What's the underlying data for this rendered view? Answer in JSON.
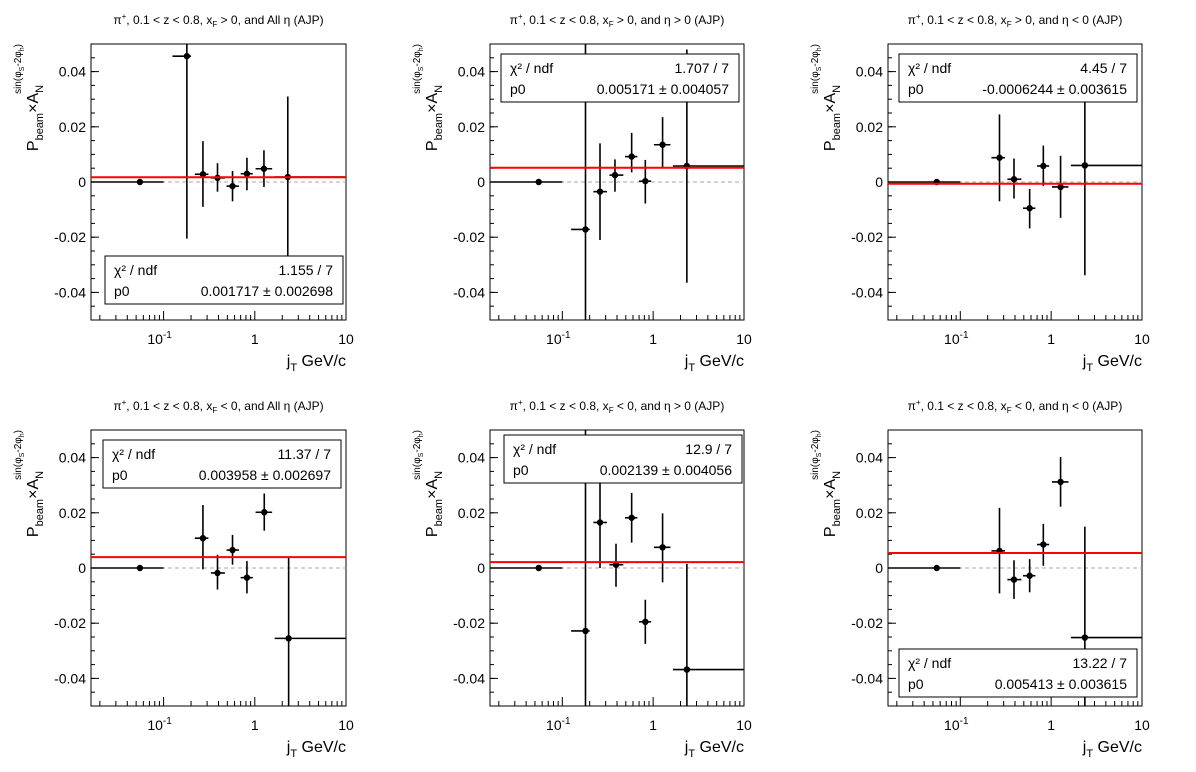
{
  "x_axis_label": {
    "main": "j",
    "sub": "T",
    "rest": " GeV/c"
  },
  "y_axis_label": {
    "p": "P",
    "beam": "beam",
    "times": "×A",
    "n": "N",
    "sup": "sin(φ",
    "sup_s": "S",
    "sup_mid": "-2φ",
    "sup_h": "h",
    "sup_end": ")"
  },
  "x_tick_labels": [
    "10",
    "1",
    "10"
  ],
  "x_tick_exponent": "-1",
  "colors": {
    "fit_line": "#ff0000",
    "zero_line": "#aaaaaa",
    "points": "#000000"
  },
  "chart_data": [
    {
      "type": "scatter",
      "title": "π⁺, 0.1 < z < 0.8, x_F > 0, and All η (AJP)",
      "title_parts": {
        "pre": "π",
        "pre_sup": "+",
        "mid": ", 0.1 < z < 0.8, x",
        "sub": "F",
        "post": " > 0, and All η (AJP)"
      },
      "xlabel": "j_T GeV/c",
      "ylabel": "P_beam × A_N^{sin(φ_S-2φ_h)}",
      "xscale": "log",
      "xlim": [
        0.016,
        10
      ],
      "ylim": [
        -0.05,
        0.05
      ],
      "y_ticks": [
        "0.04",
        "0.02",
        "0",
        "-0.02",
        "-0.04"
      ],
      "points": [
        {
          "x": 0.055,
          "y": 0.0,
          "xlo": 0.016,
          "xhi": 0.1,
          "ylo": 0.0,
          "yhi": 0.0
        },
        {
          "x": 0.18,
          "y": 0.0456,
          "xlo": 0.125,
          "xhi": 0.2,
          "ylo": -0.0205,
          "yhi": 0.05
        },
        {
          "x": 0.27,
          "y": 0.0028,
          "xlo": 0.22,
          "xhi": 0.31,
          "ylo": -0.009,
          "yhi": 0.0148
        },
        {
          "x": 0.39,
          "y": 0.0015,
          "xlo": 0.33,
          "xhi": 0.47,
          "ylo": -0.0035,
          "yhi": 0.0068
        },
        {
          "x": 0.57,
          "y": -0.0015,
          "xlo": 0.49,
          "xhi": 0.67,
          "ylo": -0.007,
          "yhi": 0.004
        },
        {
          "x": 0.82,
          "y": 0.003,
          "xlo": 0.7,
          "xhi": 0.95,
          "ylo": -0.003,
          "yhi": 0.0088
        },
        {
          "x": 1.26,
          "y": 0.0048,
          "xlo": 1.02,
          "xhi": 1.55,
          "ylo": -0.0018,
          "yhi": 0.0115
        },
        {
          "x": 2.3,
          "y": 0.0018,
          "xlo": 1.65,
          "xhi": 10,
          "ylo": -0.0272,
          "yhi": 0.031
        }
      ],
      "fit": {
        "p0": 0.001717,
        "label_chi2": "χ² / ndf",
        "chi2": "1.155 / 7",
        "label_p0": "p0",
        "p0_text": "0.001717 ± 0.002698"
      },
      "stats_box_position": "bottom-left"
    },
    {
      "type": "scatter",
      "title": "π⁺, 0.1 < z < 0.8, x_F > 0, and η > 0 (AJP)",
      "title_parts": {
        "pre": "π",
        "pre_sup": "+",
        "mid": ", 0.1 < z < 0.8, x",
        "sub": "F",
        "post": " > 0, and η > 0 (AJP)"
      },
      "xlabel": "j_T GeV/c",
      "ylabel": "P_beam × A_N^{sin(φ_S-2φ_h)}",
      "xscale": "log",
      "xlim": [
        0.016,
        10
      ],
      "ylim": [
        -0.05,
        0.05
      ],
      "y_ticks": [
        "0.04",
        "0.02",
        "0",
        "-0.02",
        "-0.04"
      ],
      "points": [
        {
          "x": 0.055,
          "y": 0.0,
          "xlo": 0.016,
          "xhi": 0.1,
          "ylo": 0.0,
          "yhi": 0.0
        },
        {
          "x": 0.18,
          "y": -0.0172,
          "xlo": 0.125,
          "xhi": 0.2,
          "ylo": -0.05,
          "yhi": 0.05
        },
        {
          "x": 0.26,
          "y": -0.0035,
          "xlo": 0.22,
          "xhi": 0.31,
          "ylo": -0.021,
          "yhi": 0.014
        },
        {
          "x": 0.38,
          "y": 0.0025,
          "xlo": 0.33,
          "xhi": 0.47,
          "ylo": -0.0035,
          "yhi": 0.0082
        },
        {
          "x": 0.58,
          "y": 0.0092,
          "xlo": 0.49,
          "xhi": 0.67,
          "ylo": 0.0035,
          "yhi": 0.0178
        },
        {
          "x": 0.82,
          "y": 0.0003,
          "xlo": 0.7,
          "xhi": 0.95,
          "ylo": -0.0078,
          "yhi": 0.008
        },
        {
          "x": 1.27,
          "y": 0.0135,
          "xlo": 1.02,
          "xhi": 1.55,
          "ylo": 0.0052,
          "yhi": 0.0235
        },
        {
          "x": 2.35,
          "y": 0.0058,
          "xlo": 1.65,
          "xhi": 10,
          "ylo": -0.0365,
          "yhi": 0.048
        }
      ],
      "fit": {
        "p0": 0.005171,
        "label_chi2": "χ² / ndf",
        "chi2": "1.707 / 7",
        "label_p0": "p0",
        "p0_text": "0.005171 ± 0.004057"
      },
      "stats_box_position": "top-right"
    },
    {
      "type": "scatter",
      "title": "π⁺, 0.1 < z < 0.8, x_F > 0, and η < 0 (AJP)",
      "title_parts": {
        "pre": "π",
        "pre_sup": "+",
        "mid": ", 0.1 < z < 0.8, x",
        "sub": "F",
        "post": " > 0, and η < 0 (AJP)"
      },
      "xlabel": "j_T GeV/c",
      "ylabel": "P_beam × A_N^{sin(φ_S-2φ_h)}",
      "xscale": "log",
      "xlim": [
        0.016,
        10
      ],
      "ylim": [
        -0.05,
        0.05
      ],
      "y_ticks": [
        "0.04",
        "0.02",
        "0",
        "-0.02",
        "-0.04"
      ],
      "points": [
        {
          "x": 0.055,
          "y": 0.0,
          "xlo": 0.016,
          "xhi": 0.1,
          "ylo": 0.0,
          "yhi": 0.0
        },
        {
          "x": 0.27,
          "y": 0.0088,
          "xlo": 0.22,
          "xhi": 0.31,
          "ylo": -0.007,
          "yhi": 0.0245
        },
        {
          "x": 0.39,
          "y": 0.001,
          "xlo": 0.33,
          "xhi": 0.47,
          "ylo": -0.006,
          "yhi": 0.0085
        },
        {
          "x": 0.58,
          "y": -0.0095,
          "xlo": 0.49,
          "xhi": 0.67,
          "ylo": -0.0168,
          "yhi": -0.0025
        },
        {
          "x": 0.82,
          "y": 0.0058,
          "xlo": 0.7,
          "xhi": 0.95,
          "ylo": -0.0015,
          "yhi": 0.0132
        },
        {
          "x": 1.27,
          "y": -0.0018,
          "xlo": 1.02,
          "xhi": 1.55,
          "ylo": -0.013,
          "yhi": 0.0095
        },
        {
          "x": 2.35,
          "y": 0.006,
          "xlo": 1.65,
          "xhi": 10,
          "ylo": -0.0338,
          "yhi": 0.0462
        }
      ],
      "fit": {
        "p0": -0.0006244,
        "label_chi2": "χ² / ndf",
        "chi2": "4.45 / 7",
        "label_p0": "p0",
        "p0_text": "-0.0006244 ± 0.003615"
      },
      "stats_box_position": "top-right"
    },
    {
      "type": "scatter",
      "title": "π⁺, 0.1 < z < 0.8, x_F < 0, and All η (AJP)",
      "title_parts": {
        "pre": "π",
        "pre_sup": "+",
        "mid": ", 0.1 < z < 0.8, x",
        "sub": "F",
        "post": " < 0, and All η (AJP)"
      },
      "xlabel": "j_T GeV/c",
      "ylabel": "P_beam × A_N^{sin(φ_S-2φ_h)}",
      "xscale": "log",
      "xlim": [
        0.016,
        10
      ],
      "ylim": [
        -0.05,
        0.05
      ],
      "y_ticks": [
        "0.04",
        "0.02",
        "0",
        "-0.02",
        "-0.04"
      ],
      "points": [
        {
          "x": 0.055,
          "y": 0.0,
          "xlo": 0.016,
          "xhi": 0.1,
          "ylo": 0.0,
          "yhi": 0.0
        },
        {
          "x": 0.27,
          "y": 0.0108,
          "xlo": 0.22,
          "xhi": 0.31,
          "ylo": -0.0005,
          "yhi": 0.0228
        },
        {
          "x": 0.39,
          "y": -0.0018,
          "xlo": 0.33,
          "xhi": 0.47,
          "ylo": -0.0078,
          "yhi": 0.0048
        },
        {
          "x": 0.57,
          "y": 0.0065,
          "xlo": 0.49,
          "xhi": 0.67,
          "ylo": 0.0012,
          "yhi": 0.012
        },
        {
          "x": 0.82,
          "y": -0.0035,
          "xlo": 0.7,
          "xhi": 0.95,
          "ylo": -0.0092,
          "yhi": 0.0025
        },
        {
          "x": 1.27,
          "y": 0.0202,
          "xlo": 1.02,
          "xhi": 1.55,
          "ylo": 0.0135,
          "yhi": 0.027
        },
        {
          "x": 2.35,
          "y": -0.0255,
          "xlo": 1.65,
          "xhi": 10,
          "ylo": -0.05,
          "yhi": 0.0038
        }
      ],
      "fit": {
        "p0": 0.003958,
        "label_chi2": "χ² / ndf",
        "chi2": "11.37 / 7",
        "label_p0": "p0",
        "p0_text": "0.003958 ± 0.002697"
      },
      "stats_box_position": "top-right"
    },
    {
      "type": "scatter",
      "title": "π⁺, 0.1 < z < 0.8, x_F < 0, and η > 0 (AJP)",
      "title_parts": {
        "pre": "π",
        "pre_sup": "+",
        "mid": ", 0.1 < z < 0.8, x",
        "sub": "F",
        "post": " < 0, and η > 0 (AJP)"
      },
      "xlabel": "j_T GeV/c",
      "ylabel": "P_beam × A_N^{sin(φ_S-2φ_h)}",
      "xscale": "log",
      "xlim": [
        0.016,
        10
      ],
      "ylim": [
        -0.05,
        0.05
      ],
      "y_ticks": [
        "0.04",
        "0.02",
        "0",
        "-0.02",
        "-0.04"
      ],
      "points": [
        {
          "x": 0.055,
          "y": 0.0,
          "xlo": 0.016,
          "xhi": 0.1,
          "ylo": 0.0,
          "yhi": 0.0
        },
        {
          "x": 0.18,
          "y": -0.0228,
          "xlo": 0.125,
          "xhi": 0.2,
          "ylo": -0.05,
          "yhi": 0.05
        },
        {
          "x": 0.26,
          "y": 0.0165,
          "xlo": 0.22,
          "xhi": 0.31,
          "ylo": 0.0,
          "yhi": 0.0335
        },
        {
          "x": 0.39,
          "y": 0.0012,
          "xlo": 0.33,
          "xhi": 0.47,
          "ylo": -0.0068,
          "yhi": 0.0088
        },
        {
          "x": 0.58,
          "y": 0.0182,
          "xlo": 0.49,
          "xhi": 0.67,
          "ylo": 0.0092,
          "yhi": 0.0272
        },
        {
          "x": 0.82,
          "y": -0.0195,
          "xlo": 0.7,
          "xhi": 0.95,
          "ylo": -0.0275,
          "yhi": -0.0115
        },
        {
          "x": 1.27,
          "y": 0.0075,
          "xlo": 1.02,
          "xhi": 1.55,
          "ylo": -0.0052,
          "yhi": 0.0198
        },
        {
          "x": 2.35,
          "y": -0.0368,
          "xlo": 1.65,
          "xhi": 10,
          "ylo": -0.05,
          "yhi": 0.0015
        }
      ],
      "fit": {
        "p0": 0.002139,
        "label_chi2": "χ² / ndf",
        "chi2": "12.9 / 7",
        "label_p0": "p0",
        "p0_text": "0.002139 ± 0.004056"
      },
      "stats_box_position": "top-left"
    },
    {
      "type": "scatter",
      "title": "π⁺, 0.1 < z < 0.8, x_F < 0, and η < 0 (AJP)",
      "title_parts": {
        "pre": "π",
        "pre_sup": "+",
        "mid": ", 0.1 < z < 0.8, x",
        "sub": "F",
        "post": " < 0, and η < 0 (AJP)"
      },
      "xlabel": "j_T GeV/c",
      "ylabel": "P_beam × A_N^{sin(φ_S-2φ_h)}",
      "xscale": "log",
      "xlim": [
        0.016,
        10
      ],
      "ylim": [
        -0.05,
        0.05
      ],
      "y_ticks": [
        "0.04",
        "0.02",
        "0",
        "-0.02",
        "-0.04"
      ],
      "points": [
        {
          "x": 0.055,
          "y": 0.0,
          "xlo": 0.016,
          "xhi": 0.1,
          "ylo": 0.0,
          "yhi": 0.0
        },
        {
          "x": 0.27,
          "y": 0.0062,
          "xlo": 0.22,
          "xhi": 0.31,
          "ylo": -0.0092,
          "yhi": 0.0218
        },
        {
          "x": 0.39,
          "y": -0.0042,
          "xlo": 0.33,
          "xhi": 0.47,
          "ylo": -0.0112,
          "yhi": 0.0028
        },
        {
          "x": 0.58,
          "y": -0.0028,
          "xlo": 0.49,
          "xhi": 0.67,
          "ylo": -0.0088,
          "yhi": 0.0032
        },
        {
          "x": 0.82,
          "y": 0.0085,
          "xlo": 0.7,
          "xhi": 0.95,
          "ylo": 0.0008,
          "yhi": 0.016
        },
        {
          "x": 1.27,
          "y": 0.0312,
          "xlo": 1.02,
          "xhi": 1.55,
          "ylo": 0.0222,
          "yhi": 0.0402
        },
        {
          "x": 2.35,
          "y": -0.0252,
          "xlo": 1.65,
          "xhi": 10,
          "ylo": -0.05,
          "yhi": 0.015
        }
      ],
      "fit": {
        "p0": 0.005413,
        "label_chi2": "χ² / ndf",
        "chi2": "13.22 / 7",
        "label_p0": "p0",
        "p0_text": "0.005413 ± 0.003615"
      },
      "stats_box_position": "bottom-right"
    }
  ]
}
